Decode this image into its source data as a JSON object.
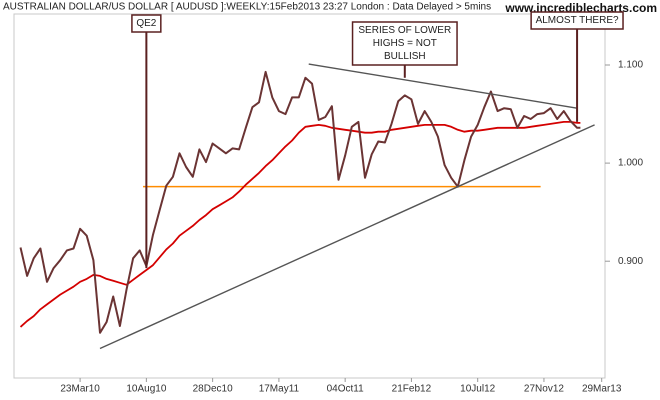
{
  "chart_data": {
    "type": "line",
    "title": "AUSTRALIAN DOLLAR/US DOLLAR [ AUDUSD ]:WEEKLY:15Feb2013 23:27 London : Data Delayed > 5mins",
    "watermark": "www.incrediblecharts.com",
    "x": [
      "17Nov09",
      "01Dec09",
      "15Dec09",
      "29Dec09",
      "12Jan10",
      "26Jan10",
      "09Feb10",
      "23Feb10",
      "09Mar10",
      "23Mar10",
      "06Apr10",
      "20Apr10",
      "04May10",
      "18May10",
      "01Jun10",
      "15Jun10",
      "29Jun10",
      "13Jul10",
      "27Jul10",
      "10Aug10",
      "24Aug10",
      "07Sep10",
      "21Sep10",
      "05Oct10",
      "19Oct10",
      "02Nov10",
      "16Nov10",
      "30Nov10",
      "14Dec10",
      "28Dec10",
      "11Jan11",
      "25Jan11",
      "08Feb11",
      "22Feb11",
      "08Mar11",
      "22Mar11",
      "05Apr11",
      "19Apr11",
      "03May11",
      "17May11",
      "31May11",
      "14Jun11",
      "28Jun11",
      "12Jul11",
      "26Jul11",
      "09Aug11",
      "23Aug11",
      "06Sep11",
      "20Sep11",
      "04Oct11",
      "18Oct11",
      "01Nov11",
      "15Nov11",
      "29Nov11",
      "13Dec11",
      "27Dec11",
      "10Jan12",
      "24Jan12",
      "07Feb12",
      "21Feb12",
      "06Mar12",
      "20Mar12",
      "03Apr12",
      "17Apr12",
      "01May12",
      "15May12",
      "29May12",
      "12Jun12",
      "26Jun12",
      "10Jul12",
      "24Jul12",
      "07Aug12",
      "21Aug12",
      "04Sep12",
      "18Sep12",
      "02Oct12",
      "16Oct12",
      "30Oct12",
      "13Nov12",
      "27Nov12",
      "11Dec12",
      "25Dec12",
      "08Jan13",
      "22Jan13",
      "05Feb13",
      "12Feb13"
    ],
    "series": [
      {
        "color": "#6b3434",
        "values": [
          0.914,
          0.885,
          0.903,
          0.913,
          0.879,
          0.893,
          0.901,
          0.911,
          0.913,
          0.933,
          0.926,
          0.901,
          0.827,
          0.838,
          0.864,
          0.834,
          0.871,
          0.903,
          0.911,
          0.895,
          0.927,
          0.952,
          0.977,
          0.986,
          1.01,
          0.996,
          0.986,
          1.014,
          1.001,
          1.02,
          1.015,
          1.01,
          1.015,
          1.014,
          1.036,
          1.057,
          1.062,
          1.093,
          1.067,
          1.053,
          1.05,
          1.067,
          1.067,
          1.087,
          1.081,
          1.044,
          1.047,
          1.058,
          0.983,
          1.008,
          1.037,
          1.042,
          0.985,
          1.009,
          1.022,
          1.021,
          1.04,
          1.063,
          1.069,
          1.065,
          1.04,
          1.053,
          1.042,
          1.027,
          0.998,
          0.985,
          0.976,
          1.003,
          1.027,
          1.039,
          1.057,
          1.073,
          1.053,
          1.056,
          1.055,
          1.036,
          1.048,
          1.045,
          1.05,
          1.051,
          1.056,
          1.045,
          1.053,
          1.043,
          1.036,
          1.036
        ]
      },
      {
        "color": "#d40000",
        "values": [
          0.833,
          0.839,
          0.844,
          0.851,
          0.856,
          0.861,
          0.866,
          0.87,
          0.874,
          0.879,
          0.882,
          0.886,
          0.885,
          0.882,
          0.88,
          0.878,
          0.876,
          0.881,
          0.886,
          0.891,
          0.896,
          0.904,
          0.912,
          0.918,
          0.926,
          0.931,
          0.936,
          0.942,
          0.947,
          0.953,
          0.957,
          0.961,
          0.965,
          0.971,
          0.978,
          0.984,
          0.99,
          0.997,
          1.003,
          1.01,
          1.017,
          1.023,
          1.031,
          1.037,
          1.038,
          1.039,
          1.038,
          1.036,
          1.035,
          1.034,
          1.033,
          1.032,
          1.031,
          1.031,
          1.032,
          1.032,
          1.034,
          1.035,
          1.036,
          1.037,
          1.038,
          1.039,
          1.039,
          1.039,
          1.039,
          1.037,
          1.034,
          1.032,
          1.033,
          1.033,
          1.034,
          1.035,
          1.036,
          1.036,
          1.036,
          1.036,
          1.036,
          1.037,
          1.038,
          1.039,
          1.04,
          1.041,
          1.042,
          1.042,
          1.041,
          1.041
        ]
      }
    ],
    "xlim": [
      "16Nov09",
      "05Apr13"
    ],
    "xticks": [
      "23Mar10",
      "10Aug10",
      "28Dec10",
      "17May11",
      "04Oct11",
      "21Feb12",
      "10Jul12",
      "27Nov12",
      "29Mar13"
    ],
    "ylim": [
      0.784,
      1.152
    ],
    "yticks": [
      {
        "value": 0.9,
        "label": "0.900"
      },
      {
        "value": 1.0,
        "label": "1.000"
      },
      {
        "value": 1.1,
        "label": "1.100"
      }
    ],
    "hline": {
      "value": 0.976,
      "x": [
        "03Aug10",
        "20Nov12"
      ],
      "color": "#ff8c00"
    },
    "trendlines": [
      {
        "x": [
          "04May10",
          "14Mar13"
        ],
        "y": [
          0.811,
          1.039
        ],
        "color": "#555555"
      },
      {
        "x": [
          "19Jul11",
          "05Feb13"
        ],
        "y": [
          1.101,
          1.056
        ],
        "color": "#555555"
      }
    ],
    "annotations": [
      {
        "lines": [
          "QE2"
        ],
        "x": "10Aug10",
        "y": 0.893
      },
      {
        "lines": [
          "SERIES OF LOWER",
          "HIGHS = NOT",
          "BULLISH"
        ],
        "x": "07Feb12",
        "y": 1.087
      },
      {
        "lines": [
          "ALMOST THERE?"
        ],
        "x": "05Feb13",
        "y": 1.042
      }
    ]
  }
}
